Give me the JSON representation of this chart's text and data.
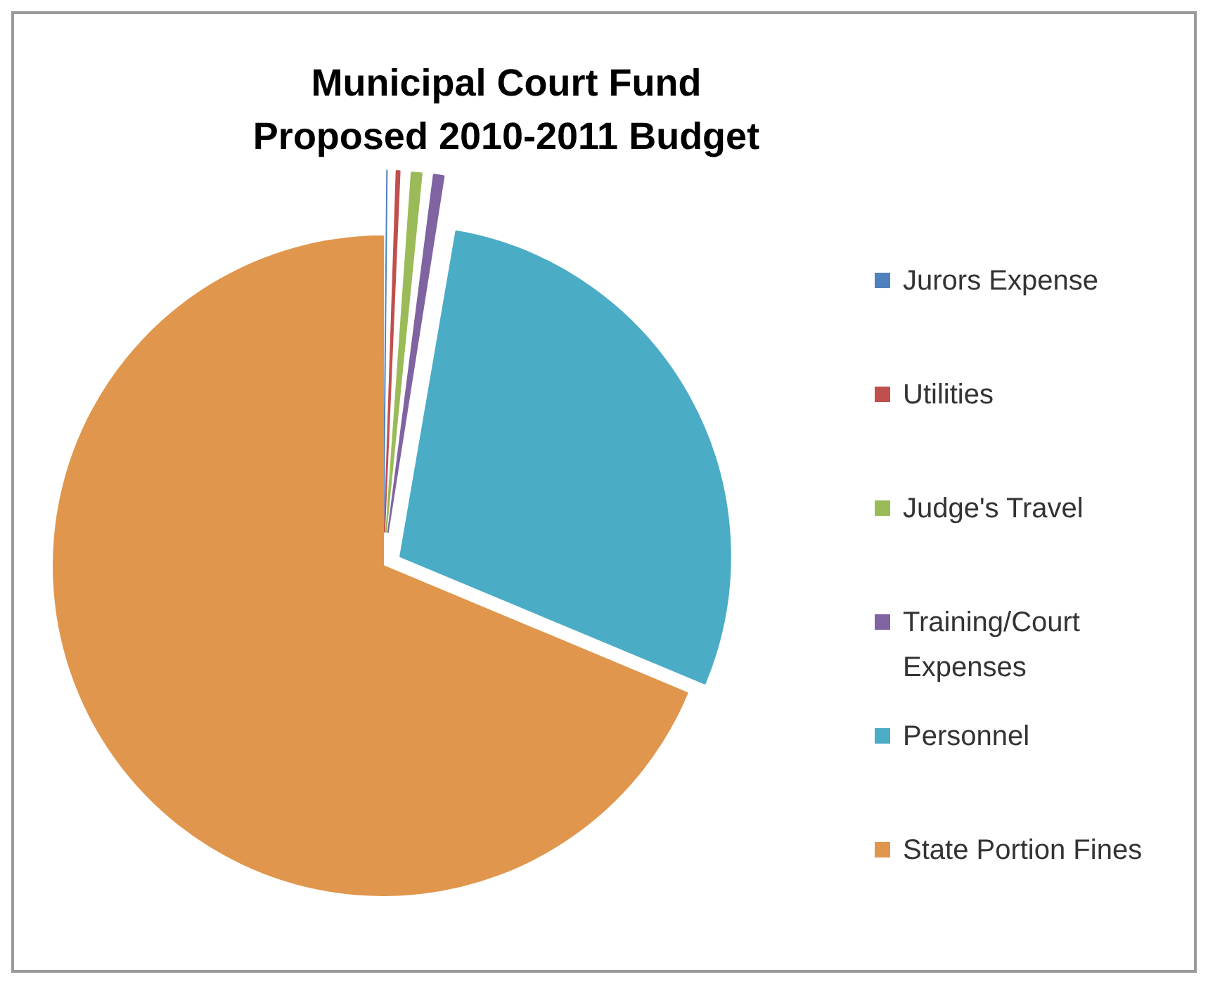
{
  "chart_data": {
    "type": "pie",
    "title": "Municipal Court Fund\nProposed 2010-2011 Budget",
    "categories": [
      "Jurors Expense",
      "Utilities",
      "Judge's Travel",
      "Training/Court Expenses",
      "Personnel",
      "State Portion Fines"
    ],
    "values": [
      0.3,
      0.6,
      0.9,
      0.9,
      28.6,
      68.7
    ],
    "colors": [
      "#4f81bd",
      "#c0504d",
      "#9bbb59",
      "#8064a2",
      "#4bacc6",
      "#e0964c"
    ],
    "legend": "right"
  }
}
